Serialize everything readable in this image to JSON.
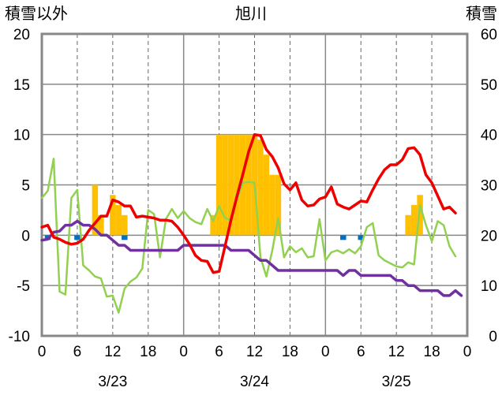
{
  "chart_data": {
    "type": "line",
    "title": "旭川",
    "left_axis_label": "積雪以外",
    "right_axis_label": "積雪",
    "y_left": {
      "min": -10,
      "max": 20,
      "ticks": [
        20,
        15,
        10,
        5,
        0,
        -5,
        -10
      ]
    },
    "y_right": {
      "min": 0,
      "max": 60,
      "ticks": [
        60,
        50,
        40,
        30,
        20,
        10,
        0
      ]
    },
    "x_axis": {
      "min": 0,
      "max": 72,
      "unit": "hours from 3/23 00:00",
      "tick_labels": [
        "0",
        "6",
        "12",
        "18",
        "0",
        "6",
        "12",
        "18",
        "0",
        "6",
        "12",
        "18",
        "0"
      ],
      "day_labels": [
        "3/23",
        "3/24",
        "3/25"
      ]
    },
    "grid": "dashed-vertical-every-6h",
    "colors": {
      "red": "#ee0000",
      "green": "#92d050",
      "purple": "#7030a0",
      "orange": "#ffc000",
      "blue": "#0070c0"
    },
    "series": [
      {
        "color": "red",
        "axis": "left",
        "points": [
          [
            0,
            0.8
          ],
          [
            1,
            1.0
          ],
          [
            2,
            -0.2
          ],
          [
            3,
            -0.4
          ],
          [
            4,
            -0.7
          ],
          [
            5,
            -0.9
          ],
          [
            6,
            -0.8
          ],
          [
            7,
            -0.4
          ],
          [
            8,
            0.5
          ],
          [
            9,
            1.2
          ],
          [
            10,
            1.9
          ],
          [
            11,
            1.9
          ],
          [
            12,
            3.5
          ],
          [
            13,
            3.3
          ],
          [
            14,
            2.9
          ],
          [
            15,
            2.9
          ],
          [
            16,
            1.8
          ],
          [
            17,
            1.9
          ],
          [
            18,
            1.8
          ],
          [
            19,
            1.7
          ],
          [
            20,
            1.5
          ],
          [
            21,
            1.5
          ],
          [
            22,
            1.4
          ],
          [
            23,
            0.8
          ],
          [
            24,
            0.0
          ],
          [
            25,
            -0.9
          ],
          [
            26,
            -2.0
          ],
          [
            27,
            -2.5
          ],
          [
            28,
            -2.6
          ],
          [
            29,
            -3.7
          ],
          [
            30,
            -3.6
          ],
          [
            31,
            -1.1
          ],
          [
            32,
            1.5
          ],
          [
            33,
            3.8
          ],
          [
            34,
            6.0
          ],
          [
            35,
            8.3
          ],
          [
            36,
            10.0
          ],
          [
            37,
            9.9
          ],
          [
            38,
            8.5
          ],
          [
            39,
            7.8
          ],
          [
            40,
            6.7
          ],
          [
            41,
            5.1
          ],
          [
            42,
            4.5
          ],
          [
            43,
            5.2
          ],
          [
            44,
            3.5
          ],
          [
            45,
            2.9
          ],
          [
            46,
            3.0
          ],
          [
            47,
            3.6
          ],
          [
            48,
            3.8
          ],
          [
            49,
            4.8
          ],
          [
            50,
            3.1
          ],
          [
            51,
            2.8
          ],
          [
            52,
            2.6
          ],
          [
            53,
            3.0
          ],
          [
            54,
            3.4
          ],
          [
            55,
            3.3
          ],
          [
            56,
            4.5
          ],
          [
            57,
            5.6
          ],
          [
            58,
            6.5
          ],
          [
            59,
            7.0
          ],
          [
            60,
            7.0
          ],
          [
            61,
            7.5
          ],
          [
            62,
            8.6
          ],
          [
            63,
            8.7
          ],
          [
            64,
            8.0
          ],
          [
            65,
            6.0
          ],
          [
            66,
            5.2
          ],
          [
            67,
            3.9
          ],
          [
            68,
            2.6
          ],
          [
            69,
            2.8
          ],
          [
            70,
            2.2
          ]
        ]
      },
      {
        "color": "green",
        "axis": "left",
        "points": [
          [
            0,
            3.7
          ],
          [
            1,
            4.4
          ],
          [
            2,
            7.6
          ],
          [
            3,
            -5.6
          ],
          [
            4,
            -5.9
          ],
          [
            5,
            3.7
          ],
          [
            6,
            4.5
          ],
          [
            7,
            -3.0
          ],
          [
            8,
            -3.5
          ],
          [
            9,
            -4.1
          ],
          [
            10,
            -4.3
          ],
          [
            11,
            -6.1
          ],
          [
            12,
            -6.0
          ],
          [
            13,
            -7.7
          ],
          [
            14,
            -5.3
          ],
          [
            15,
            -4.6
          ],
          [
            16,
            -4.2
          ],
          [
            17,
            -3.3
          ],
          [
            18,
            2.5
          ],
          [
            19,
            2.1
          ],
          [
            20,
            -2.2
          ],
          [
            21,
            1.6
          ],
          [
            22,
            2.6
          ],
          [
            23,
            1.7
          ],
          [
            24,
            2.4
          ],
          [
            25,
            1.7
          ],
          [
            26,
            1.3
          ],
          [
            27,
            1.1
          ],
          [
            28,
            2.6
          ],
          [
            29,
            1.4
          ],
          [
            30,
            2.9
          ],
          [
            31,
            1.7
          ],
          [
            32,
            1.5
          ],
          [
            33,
            3.5
          ],
          [
            34,
            5.2
          ],
          [
            35,
            5.3
          ],
          [
            36,
            5.2
          ],
          [
            37,
            -2.2
          ],
          [
            38,
            -4.1
          ],
          [
            39,
            -1.5
          ],
          [
            40,
            1.7
          ],
          [
            41,
            -2.2
          ],
          [
            42,
            -1.1
          ],
          [
            43,
            -1.7
          ],
          [
            44,
            -1.3
          ],
          [
            45,
            -2.2
          ],
          [
            46,
            -2.1
          ],
          [
            47,
            1.6
          ],
          [
            48,
            -2.5
          ],
          [
            49,
            -1.7
          ],
          [
            50,
            -1.5
          ],
          [
            51,
            -1.8
          ],
          [
            52,
            -1.4
          ],
          [
            53,
            -1.8
          ],
          [
            54,
            -1.1
          ],
          [
            55,
            0.8
          ],
          [
            56,
            1.2
          ],
          [
            57,
            -2.0
          ],
          [
            58,
            -2.5
          ],
          [
            59,
            -2.8
          ],
          [
            60,
            -3.1
          ],
          [
            61,
            -3.2
          ],
          [
            62,
            -2.7
          ],
          [
            63,
            -2.9
          ],
          [
            64,
            3.0
          ],
          [
            65,
            1.0
          ],
          [
            66,
            -0.6
          ],
          [
            67,
            1.4
          ],
          [
            68,
            1.0
          ],
          [
            69,
            -1.1
          ],
          [
            70,
            -2.1
          ]
        ]
      },
      {
        "color": "purple",
        "axis": "left",
        "points": [
          [
            0,
            -0.5
          ],
          [
            1,
            -0.4
          ],
          [
            2,
            0.3
          ],
          [
            3,
            0.4
          ],
          [
            4,
            1.0
          ],
          [
            5,
            1.0
          ],
          [
            6,
            1.4
          ],
          [
            7,
            1.0
          ],
          [
            8,
            1.0
          ],
          [
            9,
            0.6
          ],
          [
            10,
            0.0
          ],
          [
            11,
            0.0
          ],
          [
            12,
            -0.5
          ],
          [
            13,
            -1.0
          ],
          [
            14,
            -1.0
          ],
          [
            15,
            -1.5
          ],
          [
            16,
            -1.5
          ],
          [
            17,
            -1.5
          ],
          [
            18,
            -1.5
          ],
          [
            19,
            -1.5
          ],
          [
            20,
            -1.5
          ],
          [
            21,
            -1.5
          ],
          [
            22,
            -1.5
          ],
          [
            23,
            -1.5
          ],
          [
            24,
            -1.0
          ],
          [
            25,
            -1.0
          ],
          [
            26,
            -1.0
          ],
          [
            27,
            -1.0
          ],
          [
            28,
            -1.0
          ],
          [
            29,
            -1.0
          ],
          [
            30,
            -1.0
          ],
          [
            31,
            -1.0
          ],
          [
            32,
            -1.5
          ],
          [
            33,
            -1.5
          ],
          [
            34,
            -1.5
          ],
          [
            35,
            -1.5
          ],
          [
            36,
            -2.0
          ],
          [
            37,
            -2.5
          ],
          [
            38,
            -2.5
          ],
          [
            39,
            -3.0
          ],
          [
            40,
            -3.5
          ],
          [
            41,
            -3.5
          ],
          [
            42,
            -3.5
          ],
          [
            43,
            -3.5
          ],
          [
            44,
            -3.5
          ],
          [
            45,
            -3.5
          ],
          [
            46,
            -3.5
          ],
          [
            47,
            -3.5
          ],
          [
            48,
            -3.5
          ],
          [
            49,
            -3.5
          ],
          [
            50,
            -3.5
          ],
          [
            51,
            -4.0
          ],
          [
            52,
            -3.5
          ],
          [
            53,
            -3.5
          ],
          [
            54,
            -4.0
          ],
          [
            55,
            -4.0
          ],
          [
            56,
            -4.0
          ],
          [
            57,
            -4.0
          ],
          [
            58,
            -4.0
          ],
          [
            59,
            -4.0
          ],
          [
            60,
            -4.5
          ],
          [
            61,
            -4.5
          ],
          [
            62,
            -5.0
          ],
          [
            63,
            -5.0
          ],
          [
            64,
            -5.5
          ],
          [
            65,
            -5.5
          ],
          [
            66,
            -5.5
          ],
          [
            67,
            -5.5
          ],
          [
            68,
            -6.0
          ],
          [
            69,
            -6.0
          ],
          [
            70,
            -5.5
          ],
          [
            71,
            -6.0
          ]
        ]
      }
    ],
    "bars": [
      {
        "color": "orange",
        "axis": "left",
        "width_hours": 1,
        "values": [
          [
            9,
            5
          ],
          [
            10,
            2
          ],
          [
            11,
            0
          ],
          [
            12,
            4
          ],
          [
            13,
            3
          ],
          [
            14,
            2
          ],
          [
            29,
            2
          ],
          [
            30,
            10
          ],
          [
            31,
            10
          ],
          [
            32,
            10
          ],
          [
            33,
            10
          ],
          [
            34,
            10
          ],
          [
            35,
            10
          ],
          [
            36,
            10
          ],
          [
            37,
            9.5
          ],
          [
            38,
            8
          ],
          [
            39,
            6
          ],
          [
            40,
            6
          ],
          [
            62,
            2
          ],
          [
            63,
            3
          ],
          [
            64,
            4
          ]
        ]
      },
      {
        "color": "blue",
        "axis": "left",
        "width_hours": 1,
        "values": [
          [
            1,
            -0.2
          ],
          [
            6,
            -0.2
          ],
          [
            14,
            -0.4
          ],
          [
            51,
            -0.4
          ],
          [
            54,
            -0.4
          ]
        ]
      }
    ]
  }
}
